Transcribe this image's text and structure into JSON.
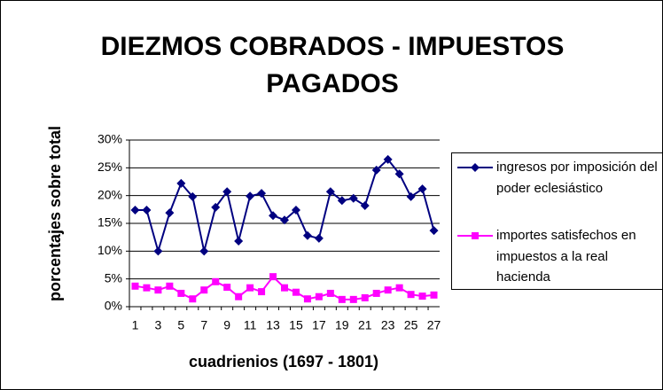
{
  "chart_data": {
    "type": "line",
    "title": "DIEZMOS COBRADOS - IMPUESTOS PAGADOS",
    "y_label": "porcentajes sobre total",
    "x_label": "cuadrienios (1697 - 1801)",
    "categories": [
      "1",
      null,
      "3",
      null,
      "5",
      null,
      "7",
      null,
      "9",
      null,
      "11",
      null,
      "13",
      null,
      "15",
      null,
      "17",
      null,
      "19",
      null,
      "21",
      null,
      "23",
      null,
      "25",
      null,
      "27"
    ],
    "series": [
      {
        "name": "ingresos por imposición del poder eclesiástico",
        "color": "#000080",
        "marker": "diamond",
        "values": [
          17.4,
          17.4,
          10.0,
          16.9,
          22.2,
          19.8,
          10.0,
          17.9,
          20.7,
          11.8,
          19.9,
          20.4,
          16.4,
          15.6,
          17.4,
          12.8,
          12.3,
          20.7,
          19.1,
          19.5,
          18.2,
          24.6,
          26.5,
          23.9,
          19.8,
          21.2,
          13.7
        ]
      },
      {
        "name": "importes satisfechos en impuestos a la real hacienda",
        "color": "#ff00ff",
        "marker": "square",
        "values": [
          3.7,
          3.4,
          3.0,
          3.7,
          2.4,
          1.4,
          3.0,
          4.5,
          3.5,
          1.8,
          3.4,
          2.7,
          5.4,
          3.4,
          2.6,
          1.4,
          1.8,
          2.4,
          1.3,
          1.3,
          1.6,
          2.4,
          3.0,
          3.4,
          2.2,
          1.9,
          2.1
        ]
      }
    ],
    "ylim": [
      0,
      30
    ],
    "yticks": [
      {
        "value": 0,
        "label": "0%"
      },
      {
        "value": 5,
        "label": "5%"
      },
      {
        "value": 10,
        "label": "10%"
      },
      {
        "value": 15,
        "label": "15%"
      },
      {
        "value": 20,
        "label": "20%"
      },
      {
        "value": 25,
        "label": "25%"
      },
      {
        "value": 30,
        "label": "30%"
      }
    ],
    "grid": true,
    "legend": "right"
  }
}
